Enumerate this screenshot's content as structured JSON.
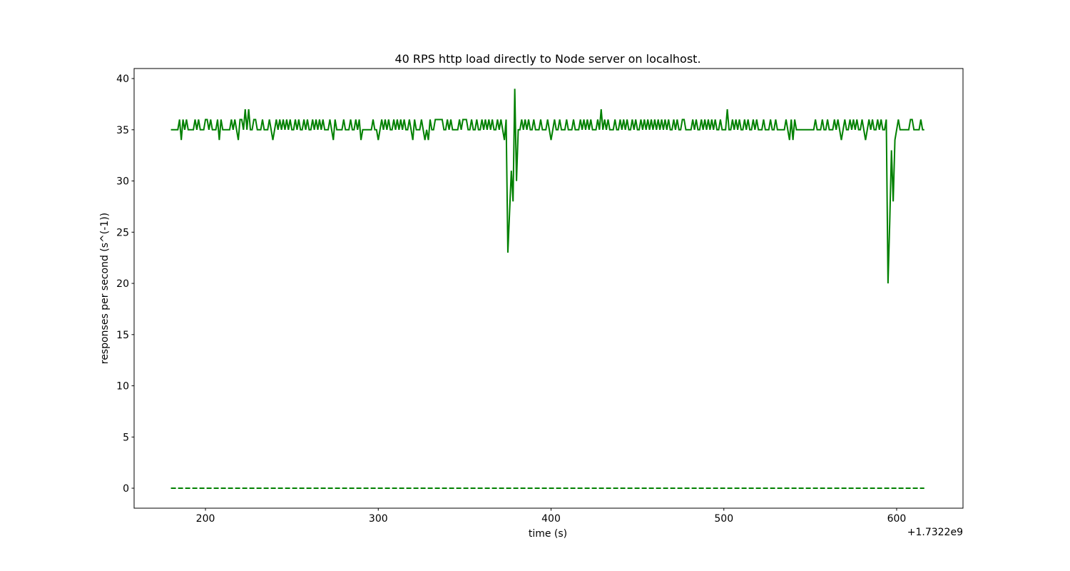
{
  "chart_data": {
    "type": "line",
    "title": "40 RPS http load directly to Node server on localhost.",
    "x_label": "time (s)",
    "y_label": "responses per second (s^(-1))",
    "x_offset_label": "+1.7322e9",
    "xlim": [
      158.7,
      638.4
    ],
    "ylim": [
      -1.95,
      40.98
    ],
    "xticks": [
      200,
      300,
      400,
      500,
      600
    ],
    "yticks": [
      0,
      5,
      10,
      15,
      20,
      25,
      30,
      35,
      40
    ],
    "grid": false,
    "series": [
      {
        "color": "#008000",
        "dash": "solid",
        "x": [
          180,
          181,
          182,
          183,
          184,
          185,
          186,
          187,
          188,
          189,
          190,
          191,
          192,
          193,
          194,
          195,
          196,
          197,
          198,
          199,
          200,
          201,
          202,
          203,
          204,
          205,
          206,
          207,
          208,
          209,
          210,
          211,
          212,
          213,
          214,
          215,
          216,
          217,
          218,
          219,
          220,
          221,
          222,
          223,
          224,
          225,
          226,
          227,
          228,
          229,
          230,
          231,
          232,
          233,
          234,
          235,
          236,
          237,
          238,
          239,
          240,
          241,
          242,
          243,
          244,
          245,
          246,
          247,
          248,
          249,
          250,
          251,
          252,
          253,
          254,
          255,
          256,
          257,
          258,
          259,
          260,
          261,
          262,
          263,
          264,
          265,
          266,
          267,
          268,
          269,
          270,
          271,
          272,
          273,
          274,
          275,
          276,
          277,
          278,
          279,
          280,
          281,
          282,
          283,
          284,
          285,
          286,
          287,
          288,
          289,
          290,
          291,
          292,
          293,
          294,
          295,
          296,
          297,
          298,
          299,
          300,
          301,
          302,
          303,
          304,
          305,
          306,
          307,
          308,
          309,
          310,
          311,
          312,
          313,
          314,
          315,
          316,
          317,
          318,
          319,
          320,
          321,
          322,
          323,
          324,
          325,
          326,
          327,
          328,
          329,
          330,
          331,
          332,
          333,
          334,
          335,
          336,
          337,
          338,
          339,
          340,
          341,
          342,
          343,
          344,
          345,
          346,
          347,
          348,
          349,
          350,
          351,
          352,
          353,
          354,
          355,
          356,
          357,
          358,
          359,
          360,
          361,
          362,
          363,
          364,
          365,
          366,
          367,
          368,
          369,
          370,
          371,
          372,
          373,
          374,
          375,
          376,
          377,
          378,
          379,
          380,
          381,
          382,
          383,
          384,
          385,
          386,
          387,
          388,
          389,
          390,
          391,
          392,
          393,
          394,
          395,
          396,
          397,
          398,
          399,
          400,
          401,
          402,
          403,
          404,
          405,
          406,
          407,
          408,
          409,
          410,
          411,
          412,
          413,
          414,
          415,
          416,
          417,
          418,
          419,
          420,
          421,
          422,
          423,
          424,
          425,
          426,
          427,
          428,
          429,
          430,
          431,
          432,
          433,
          434,
          435,
          436,
          437,
          438,
          439,
          440,
          441,
          442,
          443,
          444,
          445,
          446,
          447,
          448,
          449,
          450,
          451,
          452,
          453,
          454,
          455,
          456,
          457,
          458,
          459,
          460,
          461,
          462,
          463,
          464,
          465,
          466,
          467,
          468,
          469,
          470,
          471,
          472,
          473,
          474,
          475,
          476,
          477,
          478,
          479,
          480,
          481,
          482,
          483,
          484,
          485,
          486,
          487,
          488,
          489,
          490,
          491,
          492,
          493,
          494,
          495,
          496,
          497,
          498,
          499,
          500,
          501,
          502,
          503,
          504,
          505,
          506,
          507,
          508,
          509,
          510,
          511,
          512,
          513,
          514,
          515,
          516,
          517,
          518,
          519,
          520,
          521,
          522,
          523,
          524,
          525,
          526,
          527,
          528,
          529,
          530,
          531,
          532,
          533,
          534,
          535,
          536,
          537,
          538,
          539,
          540,
          541,
          542,
          543,
          544,
          545,
          546,
          547,
          548,
          549,
          550,
          551,
          552,
          553,
          554,
          555,
          556,
          557,
          558,
          559,
          560,
          561,
          562,
          563,
          564,
          565,
          566,
          567,
          568,
          569,
          570,
          571,
          572,
          573,
          574,
          575,
          576,
          577,
          578,
          579,
          580,
          581,
          582,
          583,
          584,
          585,
          586,
          587,
          588,
          589,
          590,
          591,
          592,
          593,
          594,
          595,
          596,
          597,
          598,
          599,
          600,
          601,
          602,
          603,
          604,
          605,
          606,
          607,
          608,
          609,
          610,
          611,
          612,
          613,
          614,
          615,
          616
        ],
        "values": [
          35,
          35,
          35,
          35,
          35,
          36,
          34,
          36,
          35,
          36,
          35,
          35,
          35,
          35,
          36,
          35,
          36,
          35,
          35,
          35,
          36,
          36,
          35,
          36,
          35,
          35,
          35,
          36,
          34,
          36,
          35,
          35,
          35,
          35,
          35,
          36,
          35,
          36,
          35,
          34,
          36,
          36,
          35,
          37,
          35,
          37,
          35,
          35,
          36,
          36,
          35,
          35,
          35,
          36,
          35,
          35,
          35,
          36,
          35,
          34,
          35,
          36,
          35,
          36,
          35,
          36,
          35,
          36,
          35,
          36,
          35,
          35,
          36,
          35,
          36,
          35,
          35,
          36,
          35,
          36,
          35,
          35,
          36,
          35,
          36,
          35,
          36,
          35,
          36,
          35,
          35,
          35,
          36,
          35,
          34,
          36,
          35,
          35,
          35,
          35,
          36,
          35,
          35,
          35,
          36,
          35,
          35,
          36,
          35,
          36,
          34,
          35,
          35,
          35,
          35,
          35,
          35,
          36,
          35,
          35,
          34,
          35,
          36,
          35,
          36,
          35,
          36,
          35,
          35,
          36,
          35,
          36,
          35,
          36,
          35,
          36,
          35,
          35,
          36,
          35,
          34,
          36,
          35,
          35,
          35,
          36,
          35,
          34,
          35,
          34,
          36,
          35,
          35,
          36,
          36,
          36,
          36,
          36,
          35,
          35,
          36,
          35,
          36,
          35,
          35,
          35,
          35,
          36,
          35,
          36,
          36,
          36,
          35,
          35,
          36,
          35,
          35,
          36,
          35,
          35,
          36,
          35,
          36,
          35,
          36,
          35,
          36,
          35,
          35,
          36,
          35,
          36,
          35,
          34,
          36,
          23,
          27,
          31,
          28,
          39,
          30,
          35,
          35,
          36,
          35,
          36,
          35,
          36,
          35,
          35,
          36,
          35,
          35,
          35,
          36,
          35,
          35,
          35,
          36,
          35,
          34,
          35,
          36,
          35,
          35,
          36,
          35,
          35,
          35,
          36,
          35,
          35,
          35,
          36,
          35,
          35,
          35,
          36,
          35,
          36,
          35,
          36,
          35,
          36,
          35,
          35,
          35,
          36,
          35,
          37,
          35,
          36,
          35,
          36,
          35,
          35,
          35,
          36,
          35,
          35,
          36,
          35,
          36,
          35,
          36,
          35,
          35,
          36,
          35,
          36,
          35,
          35,
          36,
          35,
          36,
          35,
          36,
          35,
          36,
          35,
          36,
          35,
          36,
          35,
          36,
          35,
          36,
          35,
          36,
          35,
          35,
          36,
          35,
          36,
          35,
          35,
          36,
          36,
          35,
          35,
          35,
          35,
          36,
          35,
          36,
          35,
          35,
          36,
          35,
          36,
          35,
          36,
          35,
          36,
          35,
          36,
          35,
          35,
          36,
          35,
          35,
          35,
          37,
          35,
          35,
          36,
          35,
          36,
          35,
          36,
          35,
          35,
          36,
          35,
          36,
          35,
          35,
          36,
          35,
          36,
          35,
          35,
          35,
          36,
          35,
          35,
          35,
          36,
          35,
          35,
          36,
          35,
          35,
          35,
          35,
          35,
          36,
          35,
          34,
          36,
          34,
          36,
          35,
          35,
          35,
          35,
          35,
          35,
          35,
          35,
          35,
          35,
          35,
          36,
          35,
          35,
          35,
          36,
          35,
          35,
          36,
          35,
          35,
          35,
          36,
          35,
          36,
          35,
          34,
          35,
          36,
          35,
          35,
          36,
          35,
          36,
          35,
          36,
          35,
          35,
          36,
          35,
          34,
          35,
          36,
          35,
          36,
          35,
          35,
          36,
          35,
          36,
          35,
          35,
          36,
          20,
          26,
          33,
          28,
          34,
          35,
          36,
          35,
          35,
          35,
          35,
          35,
          35,
          36,
          36,
          35,
          35,
          35,
          35,
          36,
          35,
          35
        ]
      },
      {
        "color": "#008000",
        "dash": "dashed",
        "x": [
          180,
          616
        ],
        "values": [
          0,
          0
        ]
      }
    ]
  }
}
